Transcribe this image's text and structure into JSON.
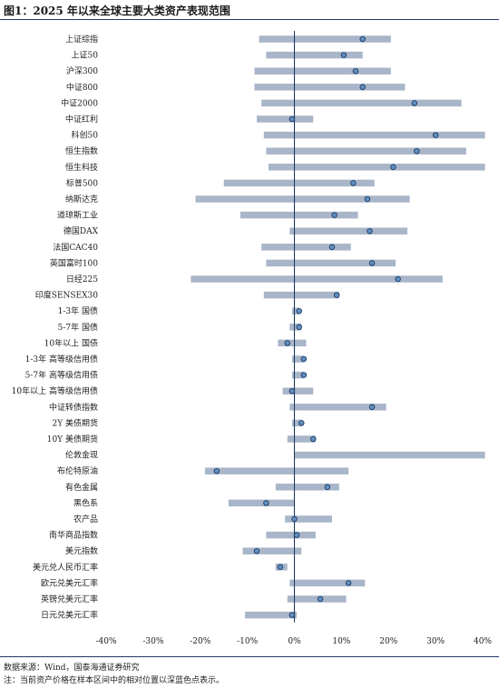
{
  "header": {
    "title": "图1：2025 年以来全球主要大类资产表现范围"
  },
  "footer": {
    "source": "数据来源：Wind，国泰海通证券研究",
    "note": "注：当前资产价格在样本区间中的相对位置以深蓝色点表示。"
  },
  "colors": {
    "bar": "#a9b6c9",
    "marker_fill": "#5f8fc0",
    "marker_stroke": "#1f3a66",
    "zero_line": "#1f3a66",
    "rule": "#1f3a66"
  },
  "chart_data": {
    "type": "range-bar",
    "xlim": [
      -40,
      40
    ],
    "xticks": [
      -40,
      -30,
      -20,
      -10,
      0,
      10,
      20,
      30,
      40
    ],
    "xtick_labels": [
      "-40%",
      "-30%",
      "-20%",
      "-10%",
      "0%",
      "10%",
      "20%",
      "30%",
      "40%"
    ],
    "grid": false,
    "categories": [
      "上证综指",
      "上证50",
      "沪深300",
      "中证800",
      "中证2000",
      "中证红利",
      "科创50",
      "恒生指数",
      "恒生科技",
      "标普500",
      "纳斯达克",
      "道琼斯工业",
      "德国DAX",
      "法国CAC40",
      "英国富时100",
      "日经225",
      "印度SENSEX30",
      "1-3年 国债",
      "5-7年 国债",
      "10年以上 国债",
      "1-3年 高等级信用债",
      "5-7年 高等级信用债",
      "10年以上 高等级信用债",
      "中证转债指数",
      "2Y 美债期货",
      "10Y 美债期货",
      "伦敦金现",
      "布伦特原油",
      "有色金属",
      "黑色系",
      "农产品",
      "南华商品指数",
      "美元指数",
      "美元兑人民币汇率",
      "欧元兑美元汇率",
      "英镑兑美元汇率",
      "日元兑美元汇率"
    ],
    "min": [
      -7.5,
      -6,
      -8.5,
      -8.5,
      -7,
      -8,
      -6.5,
      -6,
      -5.5,
      -15,
      -21,
      -11.5,
      -1,
      -7,
      -6,
      -22,
      -6.5,
      -0.5,
      -1,
      -3.5,
      -0.5,
      -0.5,
      -2.5,
      -1,
      -0.5,
      -1.5,
      0,
      -19,
      -4,
      -14,
      -2,
      -6,
      -11,
      -4,
      -1,
      -1.5,
      -10.5
    ],
    "max": [
      20.5,
      14.5,
      20.5,
      23.5,
      35.5,
      4,
      40.5,
      36.5,
      40.5,
      17,
      24.5,
      13.5,
      24,
      12,
      21.5,
      31.5,
      9.5,
      1,
      1.5,
      2.5,
      2,
      2,
      4,
      19.5,
      1.5,
      4.5,
      40.5,
      11.5,
      9.5,
      0,
      8,
      4.5,
      1.5,
      -1.5,
      15,
      11,
      0.5
    ],
    "current": [
      14.5,
      10.5,
      13,
      14.5,
      25.5,
      -0.5,
      30,
      26,
      21,
      12.5,
      15.5,
      8.5,
      16,
      8,
      16.5,
      22,
      9,
      1,
      1,
      -1.5,
      2,
      2,
      -0.5,
      16.5,
      1.5,
      4,
      null,
      -16.5,
      7,
      -6,
      0,
      0.5,
      -8,
      -3,
      11.5,
      5.5,
      -0.5
    ]
  }
}
